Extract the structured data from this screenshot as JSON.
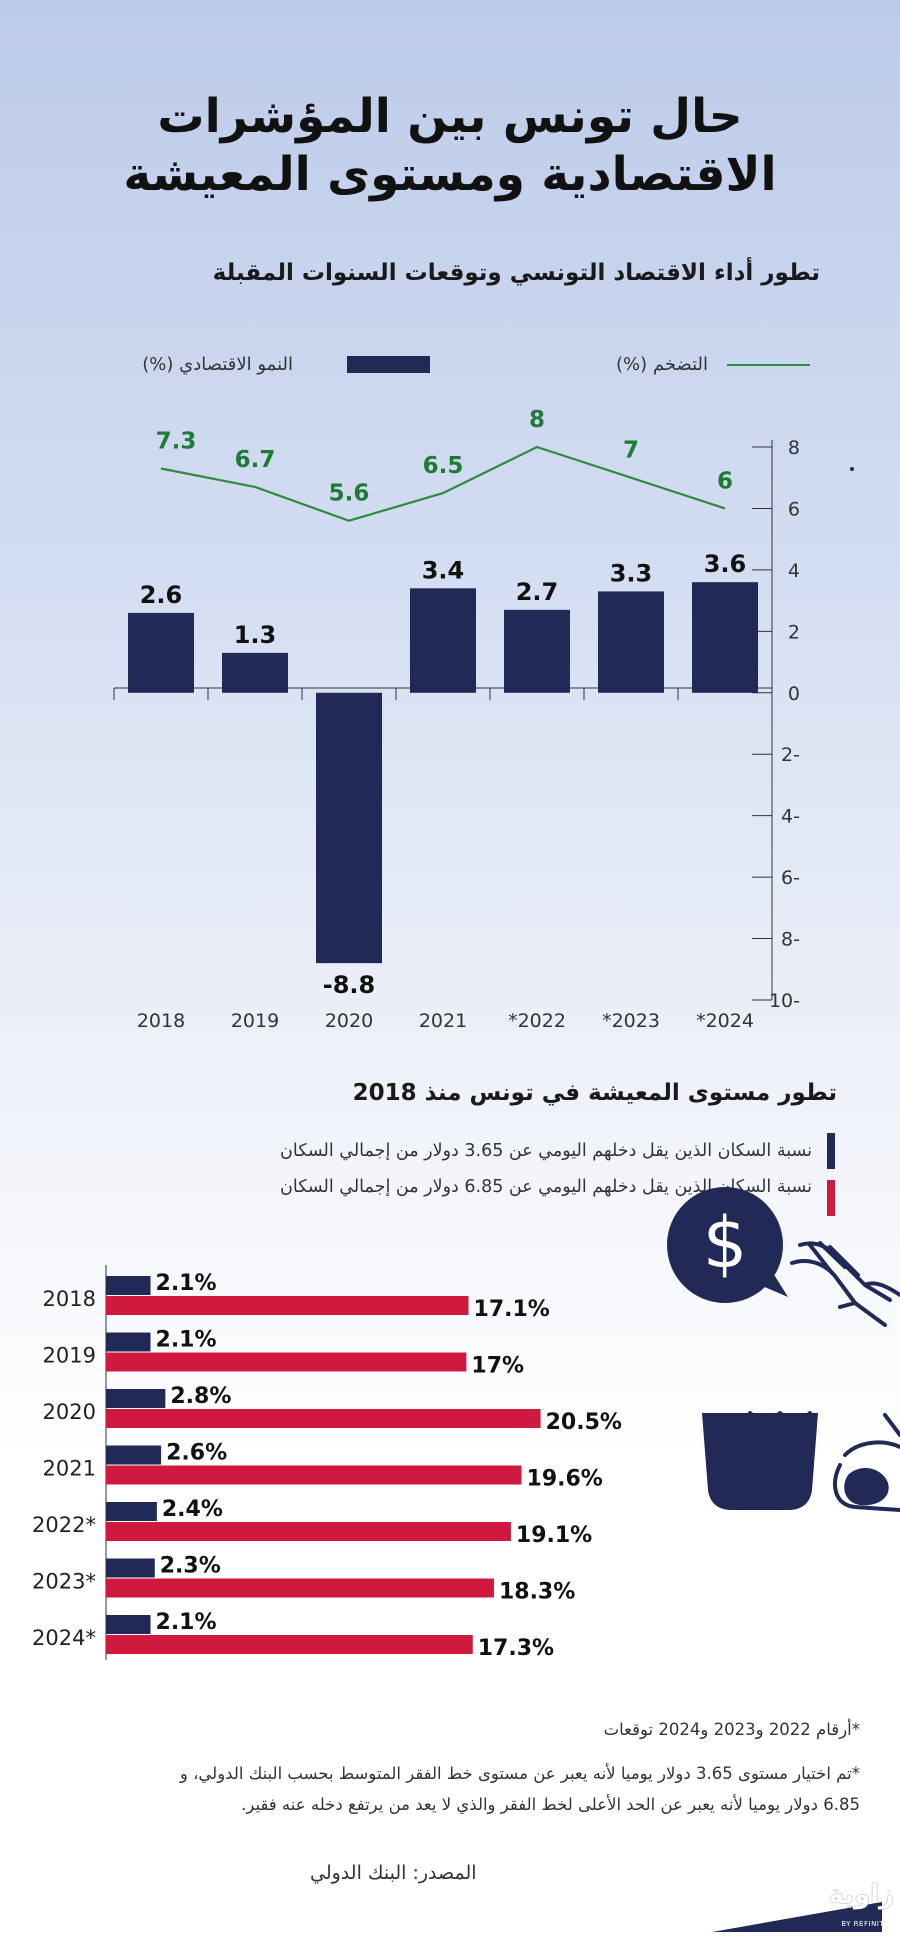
{
  "title_line1": "حال تونس بين المؤشرات",
  "title_line2": "الاقتصادية ومستوى المعيشة",
  "colors": {
    "navy": "#212a56",
    "crimson": "#d0193f",
    "green": "#2e8b3e",
    "green_label": "#1e7b35"
  },
  "chart_data": [
    {
      "type": "bar",
      "title": "تطور أداء الاقتصاد التونسي وتوقعات السنوات المقبلة",
      "categories": [
        "2018",
        "2019",
        "2020",
        "2021",
        "*2022",
        "*2023",
        "*2024"
      ],
      "series": [
        {
          "name": "النمو الاقتصادي (%)",
          "type": "bar",
          "values": [
            2.6,
            1.3,
            -8.8,
            3.4,
            2.7,
            3.3,
            3.6
          ]
        },
        {
          "name": "التضخم (%)",
          "type": "line",
          "values": [
            7.3,
            6.7,
            5.6,
            6.5,
            8,
            7,
            6
          ]
        }
      ],
      "yticks": [
        "8",
        "6",
        "4",
        "2",
        "0",
        "2-",
        "4-",
        "6-",
        "8-",
        "10-"
      ],
      "ylim": [
        -10,
        8
      ],
      "value_labels": {
        "bars": [
          "2.6",
          "1.3",
          "-8.8",
          "3.4",
          "2.7",
          "3.3",
          "3.6"
        ],
        "line": [
          "7.3",
          "6.7",
          "5.6",
          "6.5",
          "8",
          "7",
          "6"
        ]
      },
      "legend_position": "top",
      "grid": false
    },
    {
      "type": "bar",
      "orientation": "horizontal",
      "title": "تطور مستوى المعيشة في تونس منذ 2018",
      "categories": [
        "2018",
        "2019",
        "2020",
        "2021",
        "2022*",
        "2023*",
        "2024*"
      ],
      "series": [
        {
          "name": "نسبة السكان الذين يقل دخلهم اليومي عن 3.65 دولار من إجمالي السكان",
          "values": [
            2.1,
            2.1,
            2.8,
            2.6,
            2.4,
            2.3,
            2.1
          ]
        },
        {
          "name": "نسبة السكان الذين يقل دخلهم اليومي عن 6.85 دولار من إجمالي السكان",
          "values": [
            17.1,
            17,
            20.5,
            19.6,
            19.1,
            18.3,
            17.3
          ]
        }
      ],
      "value_labels": {
        "s1": [
          "2.1%",
          "2.1%",
          "2.8%",
          "2.6%",
          "2.4%",
          "2.3%",
          "2.1%"
        ],
        "s2": [
          "17.1%",
          "17%",
          "20.5%",
          "19.6%",
          "19.1%",
          "18.3%",
          "17.3%"
        ]
      },
      "legend_position": "top",
      "grid": false
    }
  ],
  "footnotes": {
    "forecast": "*أرقام 2022 و2023 و2024 توقعات",
    "explain_line1": "*تم اختيار مستوى 3.65 دولار يوميا لأنه يعبر عن مستوى خط الفقر المتوسط بحسب البنك الدولي، و",
    "explain_line2": "6.85 دولار يوميا لأنه يعبر عن الحد الأعلى لخط الفقر والذي لا يعد من يرتفع دخله عنه فقير."
  },
  "source": "المصدر: البنك الدولي",
  "logo": {
    "text": "زاوية",
    "sub": "BY REFINITIV"
  },
  "icons": [
    "dollar-speech-bubble-icon",
    "hands-holding-bowl-icon"
  ]
}
